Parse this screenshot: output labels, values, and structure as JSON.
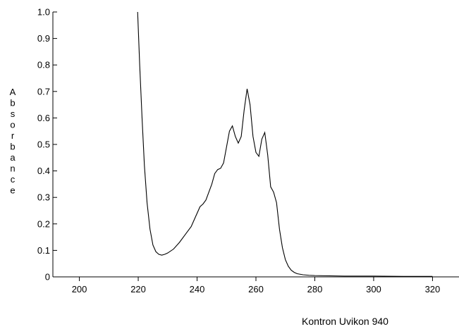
{
  "chart_data": {
    "type": "line",
    "ylabel": "Absorbance",
    "xlabel": "",
    "xlim": [
      191,
      329
    ],
    "ylim": [
      0,
      1.0
    ],
    "x_ticks": [
      200,
      220,
      240,
      260,
      280,
      300,
      320
    ],
    "y_ticks": [
      0,
      0.1,
      0.2,
      0.3,
      0.4,
      0.5,
      0.6,
      0.7,
      0.8,
      0.9,
      1.0
    ],
    "y_tick_labels": [
      "0",
      "0.1",
      "0.2",
      "0.3",
      "0.4",
      "0.5",
      "0.6",
      "0.7",
      "0.8",
      "0.9",
      "1.0"
    ],
    "x_tick_labels": [
      "200",
      "220",
      "240",
      "260",
      "280",
      "300",
      "320"
    ],
    "grid": false,
    "series": [
      {
        "color": "#000000",
        "x": [
          219.8,
          220.5,
          221.3,
          222.1,
          223.0,
          224.0,
          225.0,
          226.0,
          227.0,
          228.0,
          229.0,
          230.0,
          232.0,
          234.0,
          236.0,
          238.0,
          239.0,
          240.0,
          241.0,
          242.0,
          243.0,
          244.0,
          245.0,
          246.0,
          247.0,
          248.0,
          249.0,
          250.0,
          251.0,
          252.0,
          253.0,
          254.0,
          255.0,
          256.0,
          257.0,
          258.0,
          259.0,
          260.0,
          261.0,
          262.0,
          263.0,
          264.0,
          265.0,
          266.0,
          267.0,
          268.0,
          269.0,
          270.0,
          271.0,
          272.0,
          273.0,
          274.0,
          276.0,
          278.0,
          280.0,
          285.0,
          290.0,
          300.0,
          310.0,
          320.0
        ],
        "y": [
          1.0,
          0.8,
          0.6,
          0.42,
          0.28,
          0.18,
          0.12,
          0.095,
          0.085,
          0.082,
          0.085,
          0.09,
          0.105,
          0.13,
          0.16,
          0.19,
          0.215,
          0.24,
          0.265,
          0.275,
          0.29,
          0.32,
          0.35,
          0.39,
          0.405,
          0.41,
          0.43,
          0.49,
          0.55,
          0.57,
          0.53,
          0.505,
          0.53,
          0.63,
          0.71,
          0.65,
          0.53,
          0.47,
          0.455,
          0.52,
          0.545,
          0.46,
          0.34,
          0.32,
          0.28,
          0.18,
          0.11,
          0.065,
          0.04,
          0.025,
          0.017,
          0.012,
          0.008,
          0.006,
          0.005,
          0.004,
          0.003,
          0.003,
          0.002,
          0.002
        ]
      }
    ]
  },
  "footer": {
    "instrument": "Kontron Uvikon 940"
  }
}
